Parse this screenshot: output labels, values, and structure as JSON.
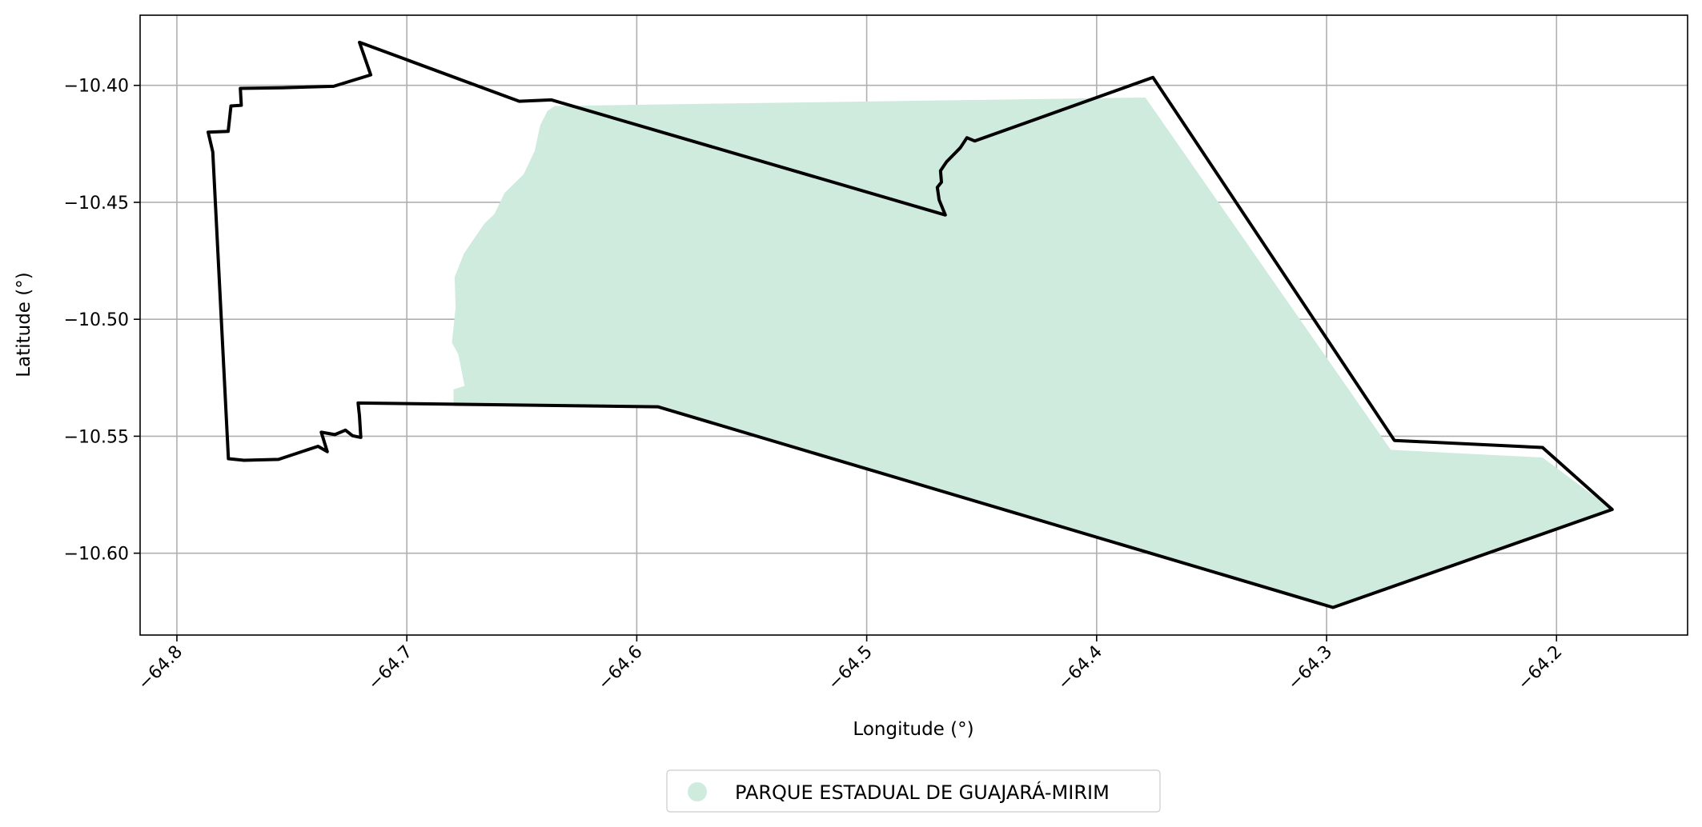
{
  "chart_data": {
    "type": "map",
    "xlabel": "Longitude (°)",
    "ylabel": "Latitude (°)",
    "xlim": [
      -64.816,
      -64.143
    ],
    "ylim": [
      -10.635,
      -10.37
    ],
    "x_ticks": [
      -64.8,
      -64.7,
      -64.6,
      -64.5,
      -64.4,
      -64.3,
      -64.2
    ],
    "x_tick_labels": [
      "−64.8",
      "−64.7",
      "−64.6",
      "−64.5",
      "−64.4",
      "−64.3",
      "−64.2"
    ],
    "y_ticks": [
      -10.4,
      -10.45,
      -10.5,
      -10.55,
      -10.6
    ],
    "y_tick_labels": [
      "−10.40",
      "−10.45",
      "−10.50",
      "−10.55",
      "−10.60"
    ],
    "grid": true,
    "legend_position": "bottom-center",
    "series": [
      {
        "name": "PARQUE ESTADUAL DE GUAJARÁ-MIRIM",
        "kind": "filled-area",
        "color": "#cfebde",
        "coordinates": [
          [
            -64.6357,
            -10.4088
          ],
          [
            -64.3788,
            -10.4052
          ],
          [
            -64.2721,
            -10.5558
          ],
          [
            -64.2061,
            -10.5591
          ],
          [
            -64.1758,
            -10.5813
          ],
          [
            -64.2972,
            -10.6232
          ],
          [
            -64.5908,
            -10.5374
          ],
          [
            -64.6797,
            -10.5372
          ],
          [
            -64.6797,
            -10.53
          ],
          [
            -64.6749,
            -10.5285
          ],
          [
            -64.6776,
            -10.515
          ],
          [
            -64.6804,
            -10.51
          ],
          [
            -64.6788,
            -10.495
          ],
          [
            -64.6792,
            -10.482
          ],
          [
            -64.6752,
            -10.472
          ],
          [
            -64.6697,
            -10.464
          ],
          [
            -64.6662,
            -10.459
          ],
          [
            -64.6619,
            -10.455
          ],
          [
            -64.6575,
            -10.446
          ],
          [
            -64.6492,
            -10.438
          ],
          [
            -64.6444,
            -10.428
          ],
          [
            -64.642,
            -10.417
          ],
          [
            -64.6389,
            -10.411
          ],
          [
            -64.6357,
            -10.4088
          ]
        ]
      },
      {
        "name": "",
        "kind": "boundary-outline",
        "color": "#000000",
        "coordinates": [
          [
            -64.7206,
            -10.3816
          ],
          [
            -64.7157,
            -10.3955
          ],
          [
            -64.7318,
            -10.4004
          ],
          [
            -64.7541,
            -10.401
          ],
          [
            -64.7724,
            -10.4013
          ],
          [
            -64.772,
            -10.4085
          ],
          [
            -64.7765,
            -10.4088
          ],
          [
            -64.7777,
            -10.4197
          ],
          [
            -64.7864,
            -10.42
          ],
          [
            -64.7844,
            -10.4285
          ],
          [
            -64.7776,
            -10.5596
          ],
          [
            -64.7708,
            -10.5603
          ],
          [
            -64.7558,
            -10.5599
          ],
          [
            -64.7386,
            -10.5543
          ],
          [
            -64.7346,
            -10.5566
          ],
          [
            -64.7372,
            -10.5483
          ],
          [
            -64.7313,
            -10.5493
          ],
          [
            -64.7267,
            -10.5474
          ],
          [
            -64.7236,
            -10.5498
          ],
          [
            -64.72,
            -10.5505
          ],
          [
            -64.7206,
            -10.5412
          ],
          [
            -64.7212,
            -10.5358
          ],
          [
            -64.5908,
            -10.5374
          ],
          [
            -64.2972,
            -10.6232
          ],
          [
            -64.1758,
            -10.5813
          ],
          [
            -64.2061,
            -10.5548
          ],
          [
            -64.2705,
            -10.5518
          ],
          [
            -64.3755,
            -10.3966
          ],
          [
            -64.453,
            -10.4238
          ],
          [
            -64.4564,
            -10.4224
          ],
          [
            -64.4593,
            -10.4267
          ],
          [
            -64.4653,
            -10.4327
          ],
          [
            -64.4679,
            -10.4365
          ],
          [
            -64.4675,
            -10.4414
          ],
          [
            -64.4693,
            -10.4436
          ],
          [
            -64.4685,
            -10.449
          ],
          [
            -64.4658,
            -10.4554
          ],
          [
            -64.6371,
            -10.4062
          ],
          [
            -64.6511,
            -10.4068
          ],
          [
            -64.7206,
            -10.3816
          ]
        ]
      }
    ]
  }
}
